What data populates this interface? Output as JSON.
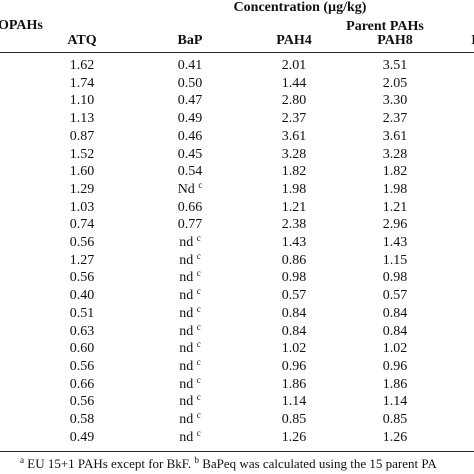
{
  "header": {
    "title": "Concentration (µg/kg)",
    "group_left": "OPAHs",
    "group_right": "Parent PAHs",
    "columns": [
      "ATQ",
      "BaP",
      "PAH4",
      "PAH8",
      "B"
    ]
  },
  "table": {
    "rows": [
      [
        "1.62",
        "0.41",
        "2.01",
        "3.51"
      ],
      [
        "1.74",
        "0.50",
        "1.44",
        "2.05"
      ],
      [
        "1.10",
        "0.47",
        "2.80",
        "3.30"
      ],
      [
        "1.13",
        "0.49",
        "2.37",
        "2.37"
      ],
      [
        "0.87",
        "0.46",
        "3.61",
        "3.61"
      ],
      [
        "1.52",
        "0.45",
        "3.28",
        "3.28"
      ],
      [
        "1.60",
        "0.54",
        "1.82",
        "1.82"
      ],
      [
        "1.29",
        {
          "text": "Nd",
          "sup": "c"
        },
        "1.98",
        "1.98"
      ],
      [
        "1.03",
        "0.66",
        "1.21",
        "1.21"
      ],
      [
        "0.74",
        "0.77",
        "2.38",
        "2.96"
      ],
      [
        "0.56",
        {
          "text": "nd",
          "sup": "c"
        },
        "1.43",
        "1.43"
      ],
      [
        "1.27",
        {
          "text": "nd",
          "sup": "c"
        },
        "0.86",
        "1.15"
      ],
      [
        "0.56",
        {
          "text": "nd",
          "sup": "c"
        },
        "0.98",
        "0.98"
      ],
      [
        "0.40",
        {
          "text": "nd",
          "sup": "c"
        },
        "0.57",
        "0.57"
      ],
      [
        "0.51",
        {
          "text": "nd",
          "sup": "c"
        },
        "0.84",
        "0.84"
      ],
      [
        "0.63",
        {
          "text": "nd",
          "sup": "c"
        },
        "0.84",
        "0.84"
      ],
      [
        "0.60",
        {
          "text": "nd",
          "sup": "c"
        },
        "1.02",
        "1.02"
      ],
      [
        "0.56",
        {
          "text": "nd",
          "sup": "c"
        },
        "0.96",
        "0.96"
      ],
      [
        "0.66",
        {
          "text": "nd",
          "sup": "c"
        },
        "1.86",
        "1.86"
      ],
      [
        "0.56",
        {
          "text": "nd",
          "sup": "c"
        },
        "1.14",
        "1.14"
      ],
      [
        "0.58",
        {
          "text": "nd",
          "sup": "c"
        },
        "0.85",
        "0.85"
      ],
      [
        "0.49",
        {
          "text": "nd",
          "sup": "c"
        },
        "1.26",
        "1.26"
      ]
    ]
  },
  "footnote": [
    {
      "sup": "a",
      "text": " EU 15+1 PAHs except for BkF. "
    },
    {
      "sup": "b",
      "text": " BaPeq was calculated using the 15 parent PA"
    }
  ]
}
